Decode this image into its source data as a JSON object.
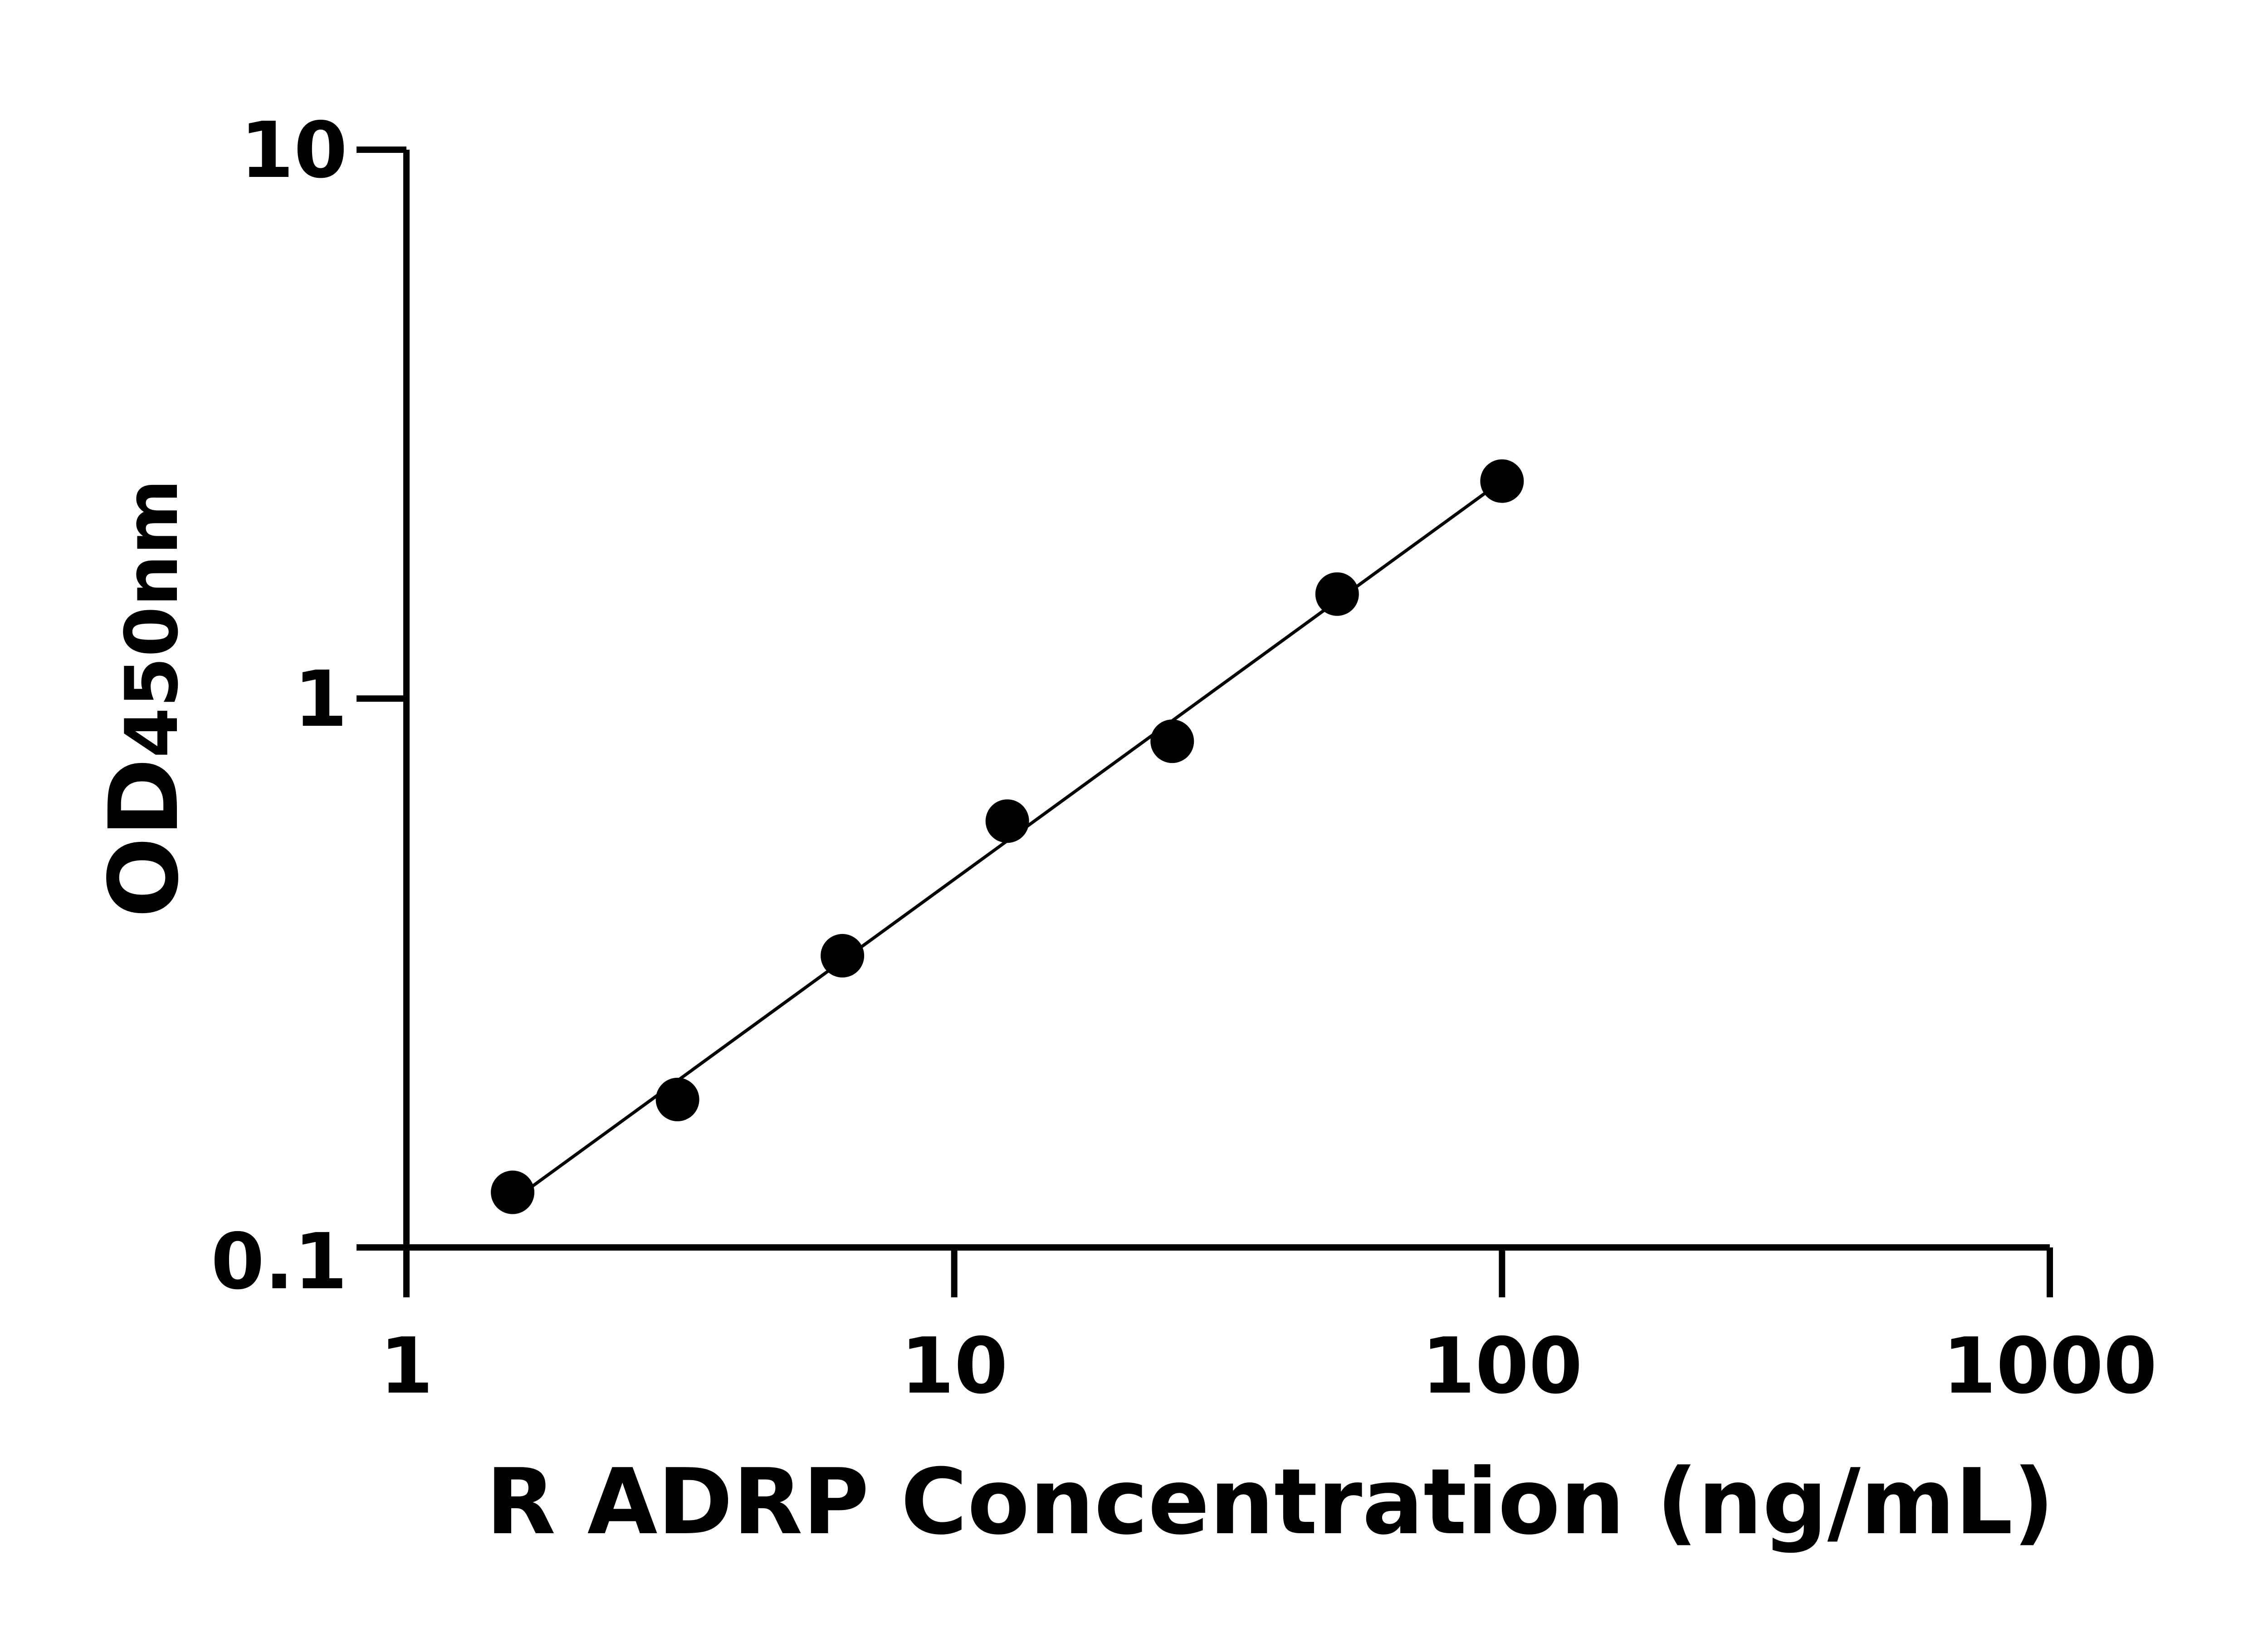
{
  "chart_data": {
    "type": "scatter",
    "xlabel": "R ADRP Concentration (ng/mL)",
    "ylabel_main": "OD",
    "ylabel_sub": "450nm",
    "xscale": "log",
    "yscale": "log",
    "xlim": [
      1,
      1000
    ],
    "ylim": [
      0.1,
      10
    ],
    "xticks": [
      {
        "v": 1,
        "label": "1"
      },
      {
        "v": 10,
        "label": "10"
      },
      {
        "v": 100,
        "label": "100"
      },
      {
        "v": 1000,
        "label": "1000"
      }
    ],
    "yticks": [
      {
        "v": 0.1,
        "label": "0.1"
      },
      {
        "v": 1,
        "label": "1"
      },
      {
        "v": 10,
        "label": "10"
      }
    ],
    "grid": false,
    "fit_line": "linear fit in log-log space",
    "x": [
      1.5625,
      3.125,
      6.25,
      12.5,
      25,
      50,
      100
    ],
    "y": [
      0.126,
      0.186,
      0.34,
      0.598,
      0.836,
      1.55,
      2.49
    ],
    "marker_color": "#000000"
  }
}
